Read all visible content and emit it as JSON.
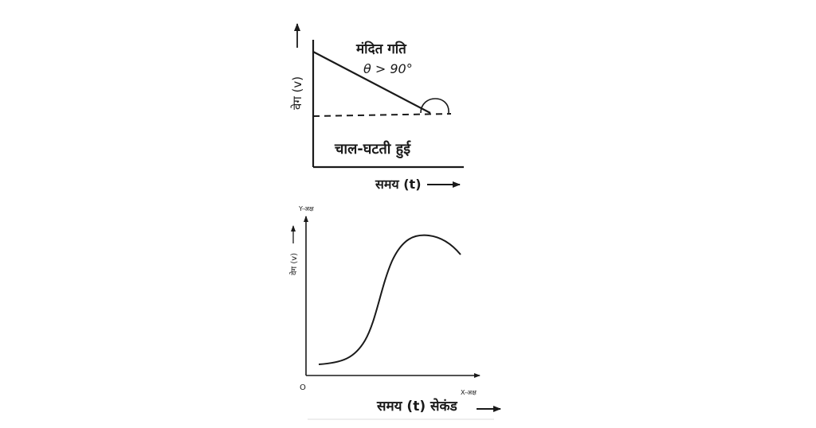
{
  "graph1": {
    "y_axis_label": "वेग (v)",
    "x_axis_label": "समय (t)",
    "annotation_title": "मंदित गति",
    "annotation_angle": "θ > 90°",
    "caption": "चाल-घटती हुई"
  },
  "graph2": {
    "y_axis_name": "Y-अक्ष",
    "y_axis_label": "वेग (v)",
    "x_axis_name": "X-अक्ष",
    "origin_label": "O",
    "x_axis_label": "समय (t) सेकंड"
  },
  "colors": {
    "ink": "#1a1a1a",
    "background": "#ffffff"
  }
}
